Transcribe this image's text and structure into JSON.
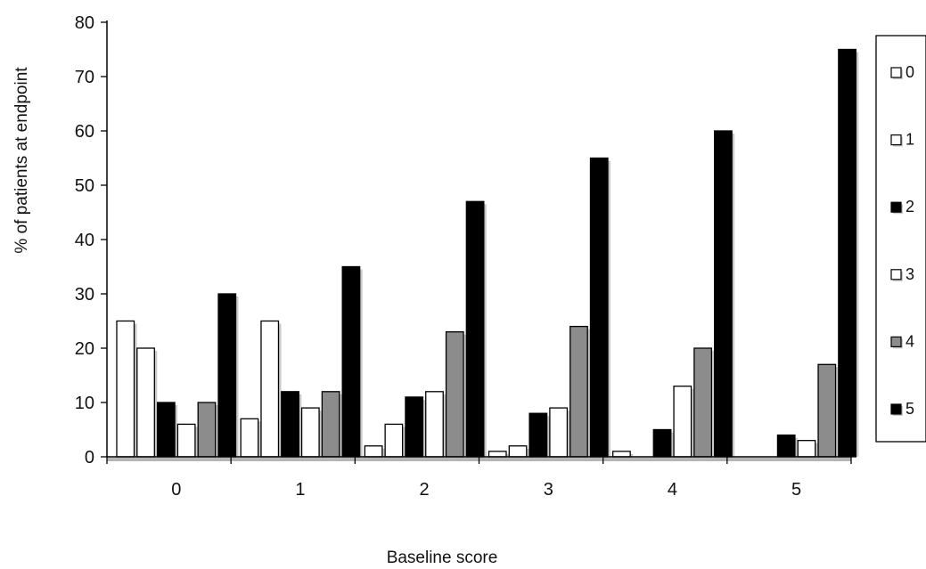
{
  "chart_data": {
    "type": "bar",
    "title": "",
    "xlabel": "Baseline score",
    "ylabel": "% of patients at endpoint",
    "ylim": [
      0,
      80
    ],
    "yticks": [
      0,
      10,
      20,
      30,
      40,
      50,
      60,
      70,
      80
    ],
    "categories": [
      "0",
      "1",
      "2",
      "3",
      "4",
      "5"
    ],
    "legend_position": "right",
    "grid": false,
    "series": [
      {
        "name": "0",
        "color": "#ffffff",
        "values": [
          25,
          7,
          2,
          1,
          1,
          0
        ]
      },
      {
        "name": "1",
        "color": "#ffffff",
        "values": [
          20,
          25,
          6,
          2,
          0,
          0
        ]
      },
      {
        "name": "2",
        "color": "#000000",
        "values": [
          10,
          12,
          11,
          8,
          5,
          4
        ]
      },
      {
        "name": "3",
        "color": "#ffffff",
        "values": [
          6,
          9,
          12,
          9,
          13,
          3
        ]
      },
      {
        "name": "4",
        "color": "#8c8c8c",
        "values": [
          10,
          12,
          23,
          24,
          20,
          17
        ]
      },
      {
        "name": "5",
        "color": "#000000",
        "values": [
          30,
          35,
          47,
          55,
          60,
          75
        ]
      }
    ]
  }
}
